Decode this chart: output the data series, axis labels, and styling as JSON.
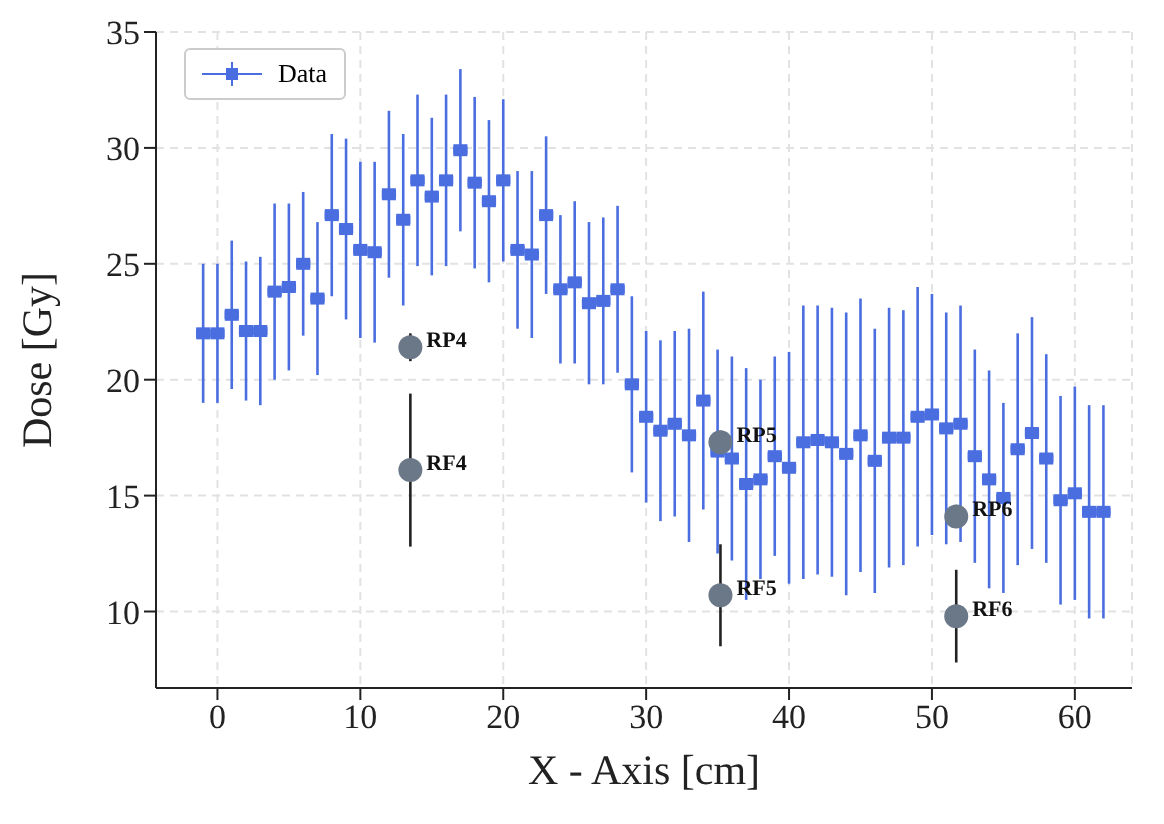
{
  "chart_data": {
    "type": "scatter",
    "xlabel": "X - Axis [cm]",
    "ylabel": "Dose [Gy]",
    "xlim": [
      -4.3,
      64
    ],
    "xticks": [
      0,
      10,
      20,
      30,
      40,
      50,
      60
    ],
    "ylim": [
      6.7,
      35
    ],
    "yticks": [
      10,
      15,
      20,
      25,
      30,
      35
    ],
    "grid": true,
    "legend": "top left",
    "line_style": "dashed",
    "series": [
      {
        "name": "Data",
        "color": "#4a6ee0",
        "marker": "square",
        "x": [
          -1,
          0,
          1,
          2,
          3,
          4,
          5,
          6,
          7,
          8,
          9,
          10,
          11,
          12,
          13,
          14,
          15,
          16,
          17,
          18,
          19,
          20,
          21,
          22,
          23,
          24,
          25,
          26,
          27,
          28,
          29,
          30,
          31,
          32,
          33,
          34,
          35,
          36,
          37,
          38,
          39,
          40,
          41,
          42,
          43,
          44,
          45,
          46,
          47,
          48,
          49,
          50,
          51,
          52,
          53,
          54,
          55,
          56,
          57,
          58,
          59,
          60,
          61,
          62
        ],
        "values": [
          22.0,
          22.0,
          22.8,
          22.1,
          22.1,
          23.8,
          24.0,
          25.0,
          23.5,
          27.1,
          26.5,
          25.6,
          25.5,
          28.0,
          26.9,
          28.6,
          27.9,
          28.6,
          29.9,
          28.5,
          27.7,
          28.6,
          25.6,
          25.4,
          27.1,
          23.9,
          24.2,
          23.3,
          23.4,
          23.9,
          19.8,
          18.4,
          17.8,
          18.1,
          17.6,
          19.1,
          16.9,
          16.6,
          15.5,
          15.7,
          16.7,
          16.2,
          17.3,
          17.4,
          17.3,
          16.8,
          17.6,
          16.5,
          17.5,
          17.5,
          18.4,
          18.5,
          17.9,
          18.1,
          16.7,
          15.7,
          14.9,
          17.0,
          17.7,
          16.6,
          14.8,
          15.1,
          14.3,
          14.3
        ],
        "errors": [
          3.0,
          3.0,
          3.2,
          3.0,
          3.2,
          3.8,
          3.6,
          3.1,
          3.3,
          3.5,
          3.9,
          3.8,
          3.9,
          3.6,
          3.7,
          3.7,
          3.4,
          3.7,
          3.5,
          3.7,
          3.5,
          3.5,
          3.4,
          3.6,
          3.4,
          3.2,
          3.5,
          3.5,
          3.6,
          3.6,
          3.8,
          3.7,
          3.9,
          4.0,
          4.6,
          4.7,
          4.4,
          4.4,
          5.0,
          4.3,
          4.3,
          5.0,
          5.9,
          5.8,
          5.8,
          6.1,
          5.9,
          5.7,
          5.6,
          5.5,
          5.6,
          5.2,
          5.0,
          5.1,
          4.6,
          4.7,
          4.1,
          5.0,
          5.0,
          4.5,
          4.5,
          4.6,
          4.6,
          4.6
        ],
        "xerrors": [
          0.5,
          0.5,
          0.5,
          0.5,
          0.5,
          0.5,
          0.5,
          0.5,
          0.5,
          0.5,
          0.5,
          0.5,
          0.5,
          0.5,
          0.5,
          0.5,
          0.5,
          0.5,
          0.5,
          0.5,
          0.5,
          0.5,
          0.5,
          0.5,
          0.5,
          0.5,
          0.5,
          0.5,
          0.5,
          0.5,
          0.5,
          0.5,
          0.5,
          0.5,
          0.5,
          0.5,
          0.5,
          0.5,
          0.5,
          0.5,
          0.5,
          0.5,
          0.5,
          0.5,
          0.5,
          0.5,
          0.5,
          0.5,
          0.5,
          0.5,
          0.5,
          0.5,
          0.5,
          0.5,
          0.5,
          0.5,
          0.5,
          0.5,
          0.5,
          0.5,
          0.5,
          0.5,
          0.5,
          0.5
        ]
      },
      {
        "color": "#6b7888",
        "marker": "circle",
        "x": [
          13.5,
          13.5,
          35.2,
          35.2,
          51.7,
          51.7
        ],
        "values": [
          21.4,
          16.1,
          17.3,
          10.7,
          14.1,
          9.8
        ],
        "errors": [
          0.6,
          3.3,
          0.5,
          2.2,
          0.5,
          2.0
        ]
      }
    ],
    "annotations": [
      {
        "text": "RP4",
        "x": 13.5,
        "y": 21.4
      },
      {
        "text": "RF4",
        "x": 13.5,
        "y": 16.1
      },
      {
        "text": "RP5",
        "x": 35.2,
        "y": 17.3
      },
      {
        "text": "RF5",
        "x": 35.2,
        "y": 10.7
      },
      {
        "text": "RP6",
        "x": 51.7,
        "y": 14.1
      },
      {
        "text": "RF6",
        "x": 51.7,
        "y": 9.8
      }
    ]
  }
}
